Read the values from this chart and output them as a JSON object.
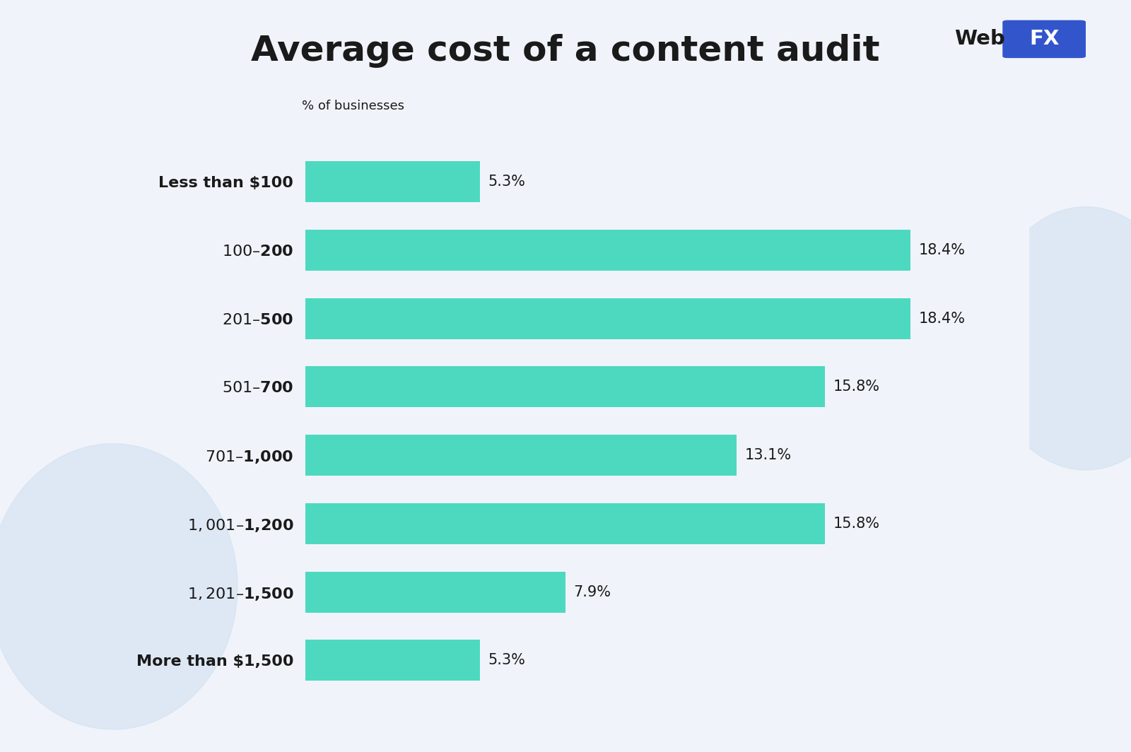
{
  "title": "Average cost of a content audit",
  "xlabel": "% of businesses",
  "categories": [
    "Less than $100",
    "$100–$200",
    "$201–$500",
    "$501–$700",
    "$701–$1,000",
    "$1,001–$1,200",
    "$1,201–$1,500",
    "More than $1,500"
  ],
  "values": [
    5.3,
    18.4,
    18.4,
    15.8,
    13.1,
    15.8,
    7.9,
    5.3
  ],
  "bar_color": "#4DD9C0",
  "label_color": "#1a1a1a",
  "title_color": "#1a1a1a",
  "bg_color": "#f0f4fa",
  "title_fontsize": 36,
  "label_fontsize": 16,
  "value_fontsize": 15,
  "xlabel_fontsize": 13,
  "webfx_highlight_bg": "#3355cc",
  "max_value": 22,
  "circle_color": "#d0dff0"
}
